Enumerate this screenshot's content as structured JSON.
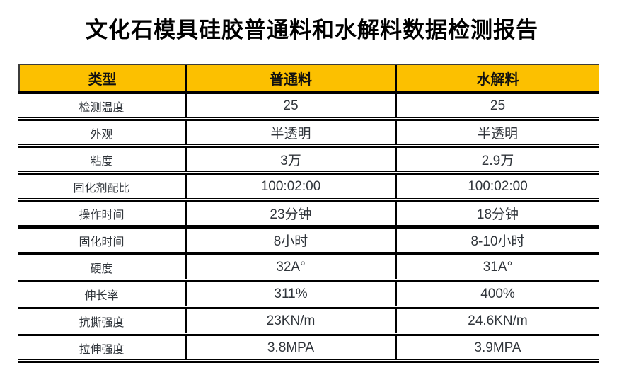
{
  "title": "文化石模具硅胶普通料和水解料数据检测报告",
  "table": {
    "headers": {
      "type": "类型",
      "ordinary": "普通料",
      "hydrolyzed": "水解料"
    },
    "rows": [
      {
        "label": "检测温度",
        "ordinary": "25",
        "hydrolyzed": "25"
      },
      {
        "label": "外观",
        "ordinary": "半透明",
        "hydrolyzed": "半透明"
      },
      {
        "label": "粘度",
        "ordinary": "3万",
        "hydrolyzed": "2.9万"
      },
      {
        "label": "固化剂配比",
        "ordinary": "100:02:00",
        "hydrolyzed": "100:02:00"
      },
      {
        "label": "操作时间",
        "ordinary": "23分钟",
        "hydrolyzed": "18分钟"
      },
      {
        "label": "固化时间",
        "ordinary": "8小时",
        "hydrolyzed": "8-10小时"
      },
      {
        "label": "硬度",
        "ordinary": "32A°",
        "hydrolyzed": "31A°"
      },
      {
        "label": "伸长率",
        "ordinary": "311%",
        "hydrolyzed": "400%"
      },
      {
        "label": "抗撕强度",
        "ordinary": "23KN/m",
        "hydrolyzed": "24.6KN/m"
      },
      {
        "label": "拉伸强度",
        "ordinary": "3.8MPA",
        "hydrolyzed": "3.9MPA"
      }
    ]
  },
  "colors": {
    "header_bg": "#FCC000",
    "border": "#000000",
    "text": "#30353B",
    "title_text": "#000000"
  }
}
